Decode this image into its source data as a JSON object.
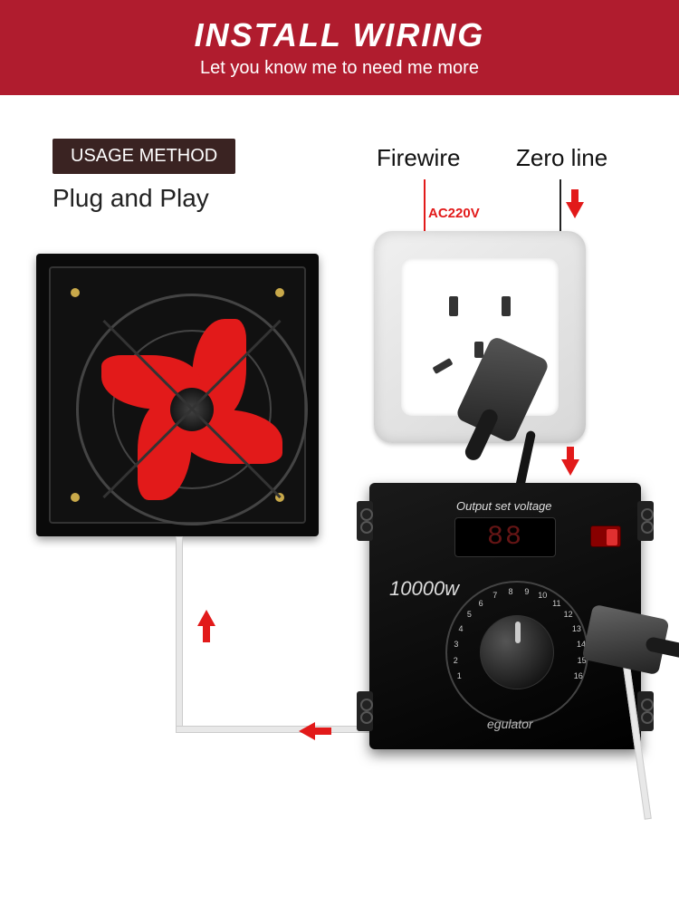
{
  "colors": {
    "header_bg": "#b01c2e",
    "badge_bg": "#3a2322",
    "red": "#e21a1a",
    "black": "#0a0a0a",
    "white": "#ffffff"
  },
  "header": {
    "title": "INSTALL WIRING",
    "subtitle": "Let you know me to need me more"
  },
  "usage": {
    "badge": "USAGE METHOD",
    "text": "Plug and Play"
  },
  "outlet": {
    "firewire_label": "Firewire",
    "zeroline_label": "Zero line",
    "voltage": "AC220V"
  },
  "controller": {
    "output_label": "Output set voltage",
    "display_value": "88",
    "wattage": "10000w",
    "regulator_label": "egulator",
    "dial_values": [
      "1",
      "2",
      "3",
      "4",
      "5",
      "6",
      "7",
      "8",
      "9",
      "10",
      "11",
      "12",
      "13",
      "14",
      "15",
      "16"
    ]
  },
  "diagram": {
    "type": "infographic",
    "components": [
      "exhaust_fan",
      "wall_outlet",
      "voltage_regulator",
      "power_plug_top",
      "power_plug_side"
    ],
    "flow_arrows": [
      {
        "from": "zero_line",
        "to": "outlet",
        "direction": "down"
      },
      {
        "from": "outlet",
        "to": "controller",
        "direction": "down"
      },
      {
        "from": "controller",
        "to": "cable",
        "direction": "left"
      },
      {
        "from": "cable",
        "to": "fan",
        "direction": "up"
      }
    ],
    "fan": {
      "blade_count": 4,
      "blade_color": "#e21a1a",
      "frame_color": "#0a0a0a"
    },
    "background_color": "#ffffff"
  }
}
